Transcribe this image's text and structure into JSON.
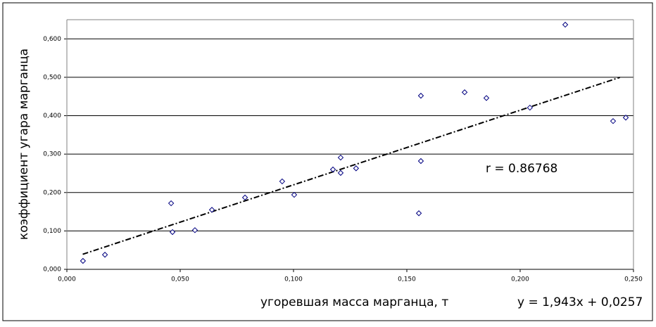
{
  "chart_data": {
    "type": "scatter",
    "xlabel": "угоревшая масса марганца, т",
    "ylabel": "коэффициент угара марганца",
    "series": [
      {
        "color": "#000080",
        "x": [
          0.0071,
          0.0168,
          0.046,
          0.0466,
          0.0565,
          0.064,
          0.0786,
          0.095,
          0.1003,
          0.1174,
          0.1208,
          0.1208,
          0.1276,
          0.1553,
          0.1562,
          0.1562,
          0.1755,
          0.1851,
          0.2043,
          0.2199,
          0.241,
          0.2466
        ],
        "values": [
          0.022,
          0.038,
          0.172,
          0.097,
          0.102,
          0.155,
          0.187,
          0.229,
          0.194,
          0.26,
          0.291,
          0.251,
          0.263,
          0.146,
          0.452,
          0.282,
          0.461,
          0.446,
          0.421,
          0.637,
          0.386,
          0.395
        ]
      }
    ],
    "trendline": {
      "slope": 1.943,
      "intercept": 0.0257,
      "xlim": [
        0.007,
        0.244
      ],
      "label": "y = 1,943x + 0,0257"
    },
    "annotation": "r = 0.86768",
    "xlim": [
      0,
      0.25
    ],
    "ylim": [
      0,
      0.65
    ],
    "xticks": [
      {
        "value": 0,
        "label": "0,000"
      },
      {
        "value": 0.05,
        "label": "0,050"
      },
      {
        "value": 0.1,
        "label": "0,100"
      },
      {
        "value": 0.15,
        "label": "0,150"
      },
      {
        "value": 0.2,
        "label": "0,200"
      },
      {
        "value": 0.25,
        "label": "0,250"
      }
    ],
    "yticks": [
      {
        "value": 0,
        "label": "0,000"
      },
      {
        "value": 0.1,
        "label": "0,100"
      },
      {
        "value": 0.2,
        "label": "0,200"
      },
      {
        "value": 0.3,
        "label": "0,300"
      },
      {
        "value": 0.4,
        "label": "0,400"
      },
      {
        "value": 0.5,
        "label": "0,500"
      },
      {
        "value": 0.6,
        "label": "0,600"
      }
    ],
    "grid": true
  }
}
